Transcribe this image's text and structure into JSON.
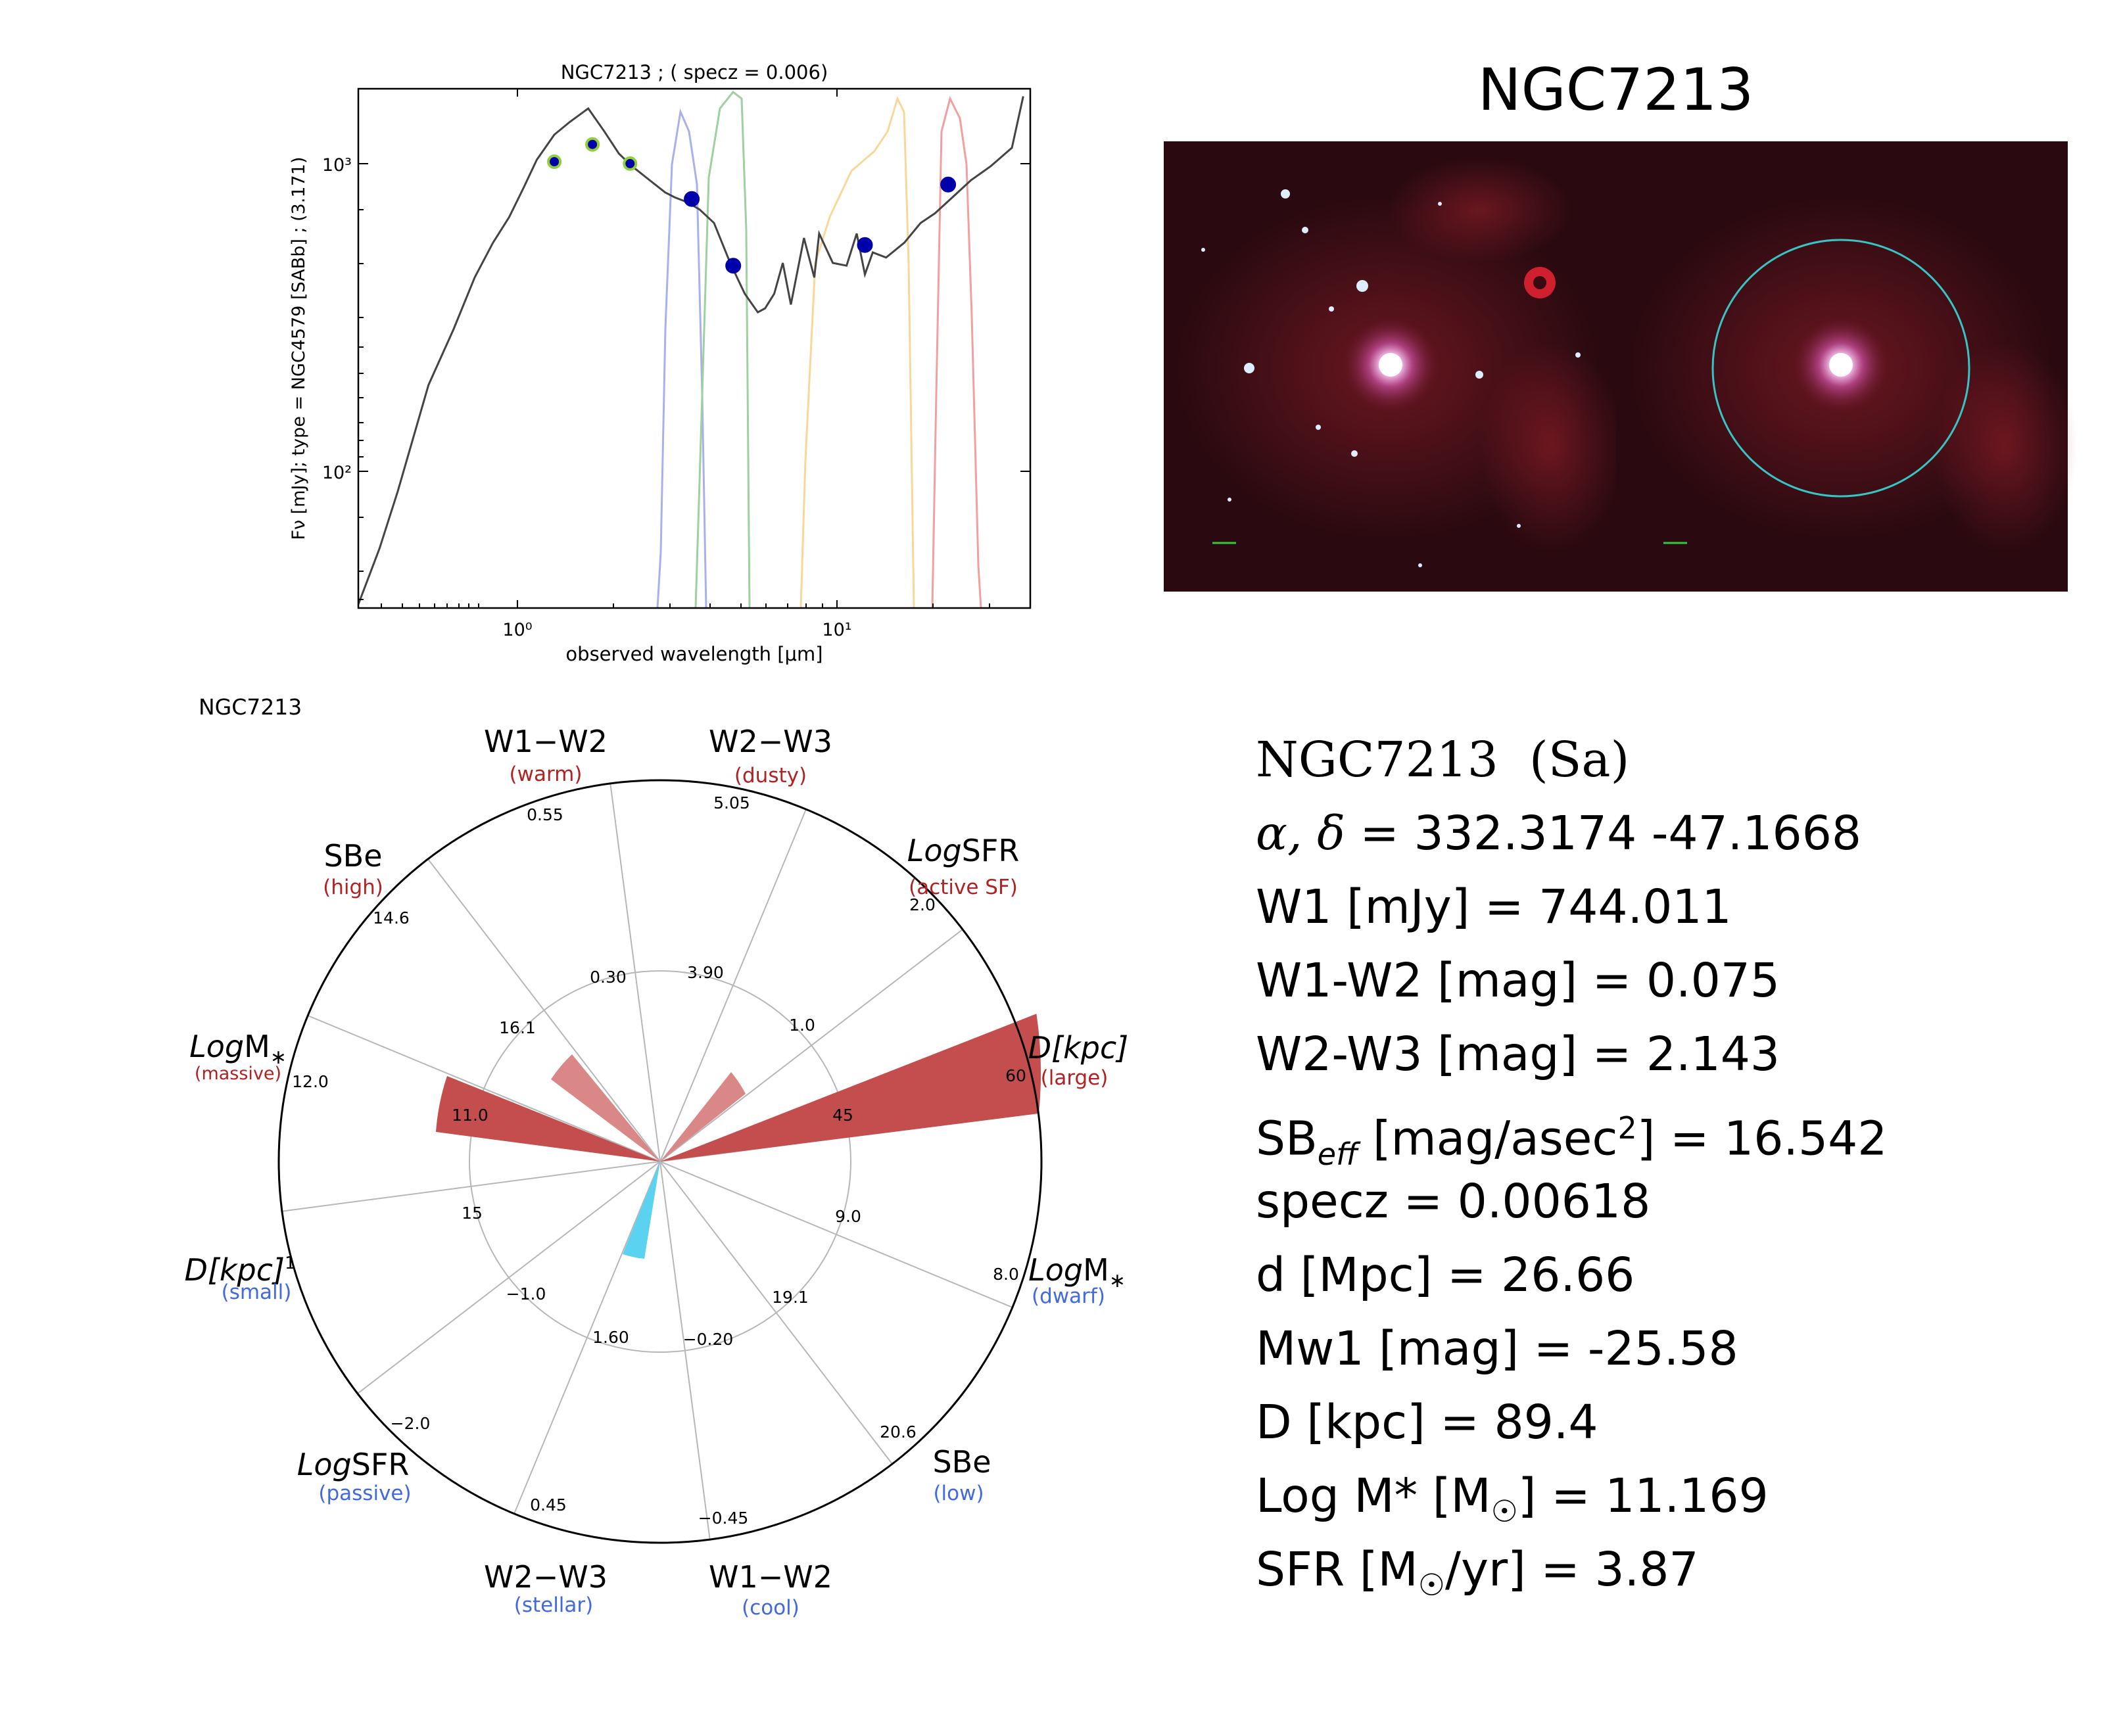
{
  "sed": {
    "title": "NGC7213 ; ( specz = 0.006)",
    "xlabel": "observed wavelength [μm]",
    "ylabel": "Fν [mJy]; type = NGC4579 [SABb] ; (3.171)",
    "x_ticks": [
      "10⁰",
      "10¹"
    ],
    "y_ticks": [
      "10³",
      "10²"
    ]
  },
  "image_panel": {
    "title": "NGC7213"
  },
  "radar": {
    "name": "NGC7213"
  },
  "info": {
    "name": "NGC7213  (Sa)",
    "coords_symbol": "α, δ",
    "coords": " = 332.3174 -47.1668",
    "w1": "W1 [mJy] = 744.011",
    "w1w2": "W1-W2 [mag] = 0.075",
    "w2w3": "W2-W3 [mag] = 2.143",
    "sb_pre": "SB",
    "sb_sub": "eff",
    "sb_mid": " [mag/asec",
    "sb_sup": "2",
    "sb_post": "] = 16.542",
    "specz": "specz = 0.00618",
    "dist": "d [Mpc] = 26.66",
    "mw1": "Mw1 [mag] = -25.58",
    "diam": "D [kpc] = 89.4",
    "logm": "Log M* [M",
    "logm_post": "] = 11.169",
    "sfr": "SFR [M",
    "sfr_post": "/yr] = 3.87",
    "sun": "☉"
  },
  "chart_data": [
    {
      "type": "line",
      "title": "NGC7213 ; ( specz = 0.006)",
      "xlabel": "observed wavelength [μm]",
      "ylabel": "Fν [mJy]; type = NGC4579 [SABb] ; (3.171)",
      "xscale": "log",
      "yscale": "log",
      "xlim": [
        0.3,
        40
      ],
      "ylim": [
        35,
        1800
      ],
      "series": [
        {
          "role": "template",
          "x": [
            0.3,
            0.35,
            0.4,
            0.45,
            0.5,
            0.6,
            0.7,
            0.8,
            0.9,
            1.0,
            1.1,
            1.25,
            1.4,
            1.6,
            1.8,
            2.0,
            2.2,
            2.5,
            2.8,
            3.0,
            3.3,
            3.6,
            4.0,
            4.5,
            5.0,
            5.5,
            5.8,
            6.2,
            6.6,
            7.0,
            7.7,
            8.3,
            8.6,
            9.5,
            10.5,
            11.3,
            12.0,
            12.7,
            14.0,
            16.0,
            18.0,
            20.0,
            23.0,
            26.0,
            30.0,
            35.0,
            38.0
          ],
          "y": [
            36,
            55,
            85,
            130,
            190,
            290,
            430,
            560,
            680,
            850,
            1050,
            1270,
            1400,
            1550,
            1300,
            1100,
            1000,
            900,
            820,
            790,
            760,
            720,
            650,
            480,
            380,
            330,
            340,
            380,
            480,
            350,
            580,
            430,
            600,
            480,
            470,
            600,
            440,
            520,
            500,
            560,
            650,
            700,
            800,
            900,
            1000,
            1150,
            1700
          ]
        },
        {
          "role": "photometry",
          "x": [
            1.25,
            1.65,
            2.17,
            3.4,
            4.6,
            12,
            22
          ],
          "y": [
            1035,
            1180,
            1020,
            780,
            470,
            550,
            870
          ]
        }
      ]
    },
    {
      "type": "polar-bar",
      "axes": [
        {
          "name": "D[kpc]",
          "tag": "large",
          "max": "60",
          "mid": "45"
        },
        {
          "name": "LogSFR",
          "tag": "active SF",
          "max": "2.0",
          "mid": "1.0"
        },
        {
          "name": "W2−W3",
          "tag": "dusty",
          "max": "5.05",
          "mid": "3.90"
        },
        {
          "name": "W1−W2",
          "tag": "warm",
          "max": "0.55",
          "mid": "0.30"
        },
        {
          "name": "SBe",
          "tag": "high",
          "max": "14.6",
          "mid": "16.1"
        },
        {
          "name": "LogM*",
          "tag": "massive",
          "max": "12.0",
          "mid": "11.0"
        },
        {
          "name": "D[kpc]",
          "tag": "small",
          "max": "",
          "mid": "15"
        },
        {
          "name": "LogSFR",
          "tag": "passive",
          "max": "−2.0",
          "mid": "−1.0"
        },
        {
          "name": "W2−W3",
          "tag": "stellar",
          "max": "0.45",
          "mid": "1.60"
        },
        {
          "name": "W1−W2",
          "tag": "cool",
          "max": "−0.45",
          "mid": "−0.20"
        },
        {
          "name": "SBe",
          "tag": "low",
          "max": "20.6",
          "mid": "19.1"
        },
        {
          "name": "LogM*",
          "tag": "dwarf",
          "max": "8.0",
          "mid": "9.0"
        }
      ],
      "bars": [
        {
          "axis": "D[kpc] (large)",
          "fraction": 1.0,
          "color": "#c44d4d"
        },
        {
          "axis": "LogSFR (active SF)",
          "fraction": 0.34,
          "color": "#d98787"
        },
        {
          "axis": "W1−W2 (warm)",
          "fraction": 0.4,
          "color": "#d98787"
        },
        {
          "axis": "LogM* (massive)",
          "fraction": 0.59,
          "color": "#c44d4d"
        },
        {
          "axis": "W2−W3 (stellar)",
          "fraction": 0.38,
          "color": "#5bd3f0"
        }
      ]
    }
  ]
}
